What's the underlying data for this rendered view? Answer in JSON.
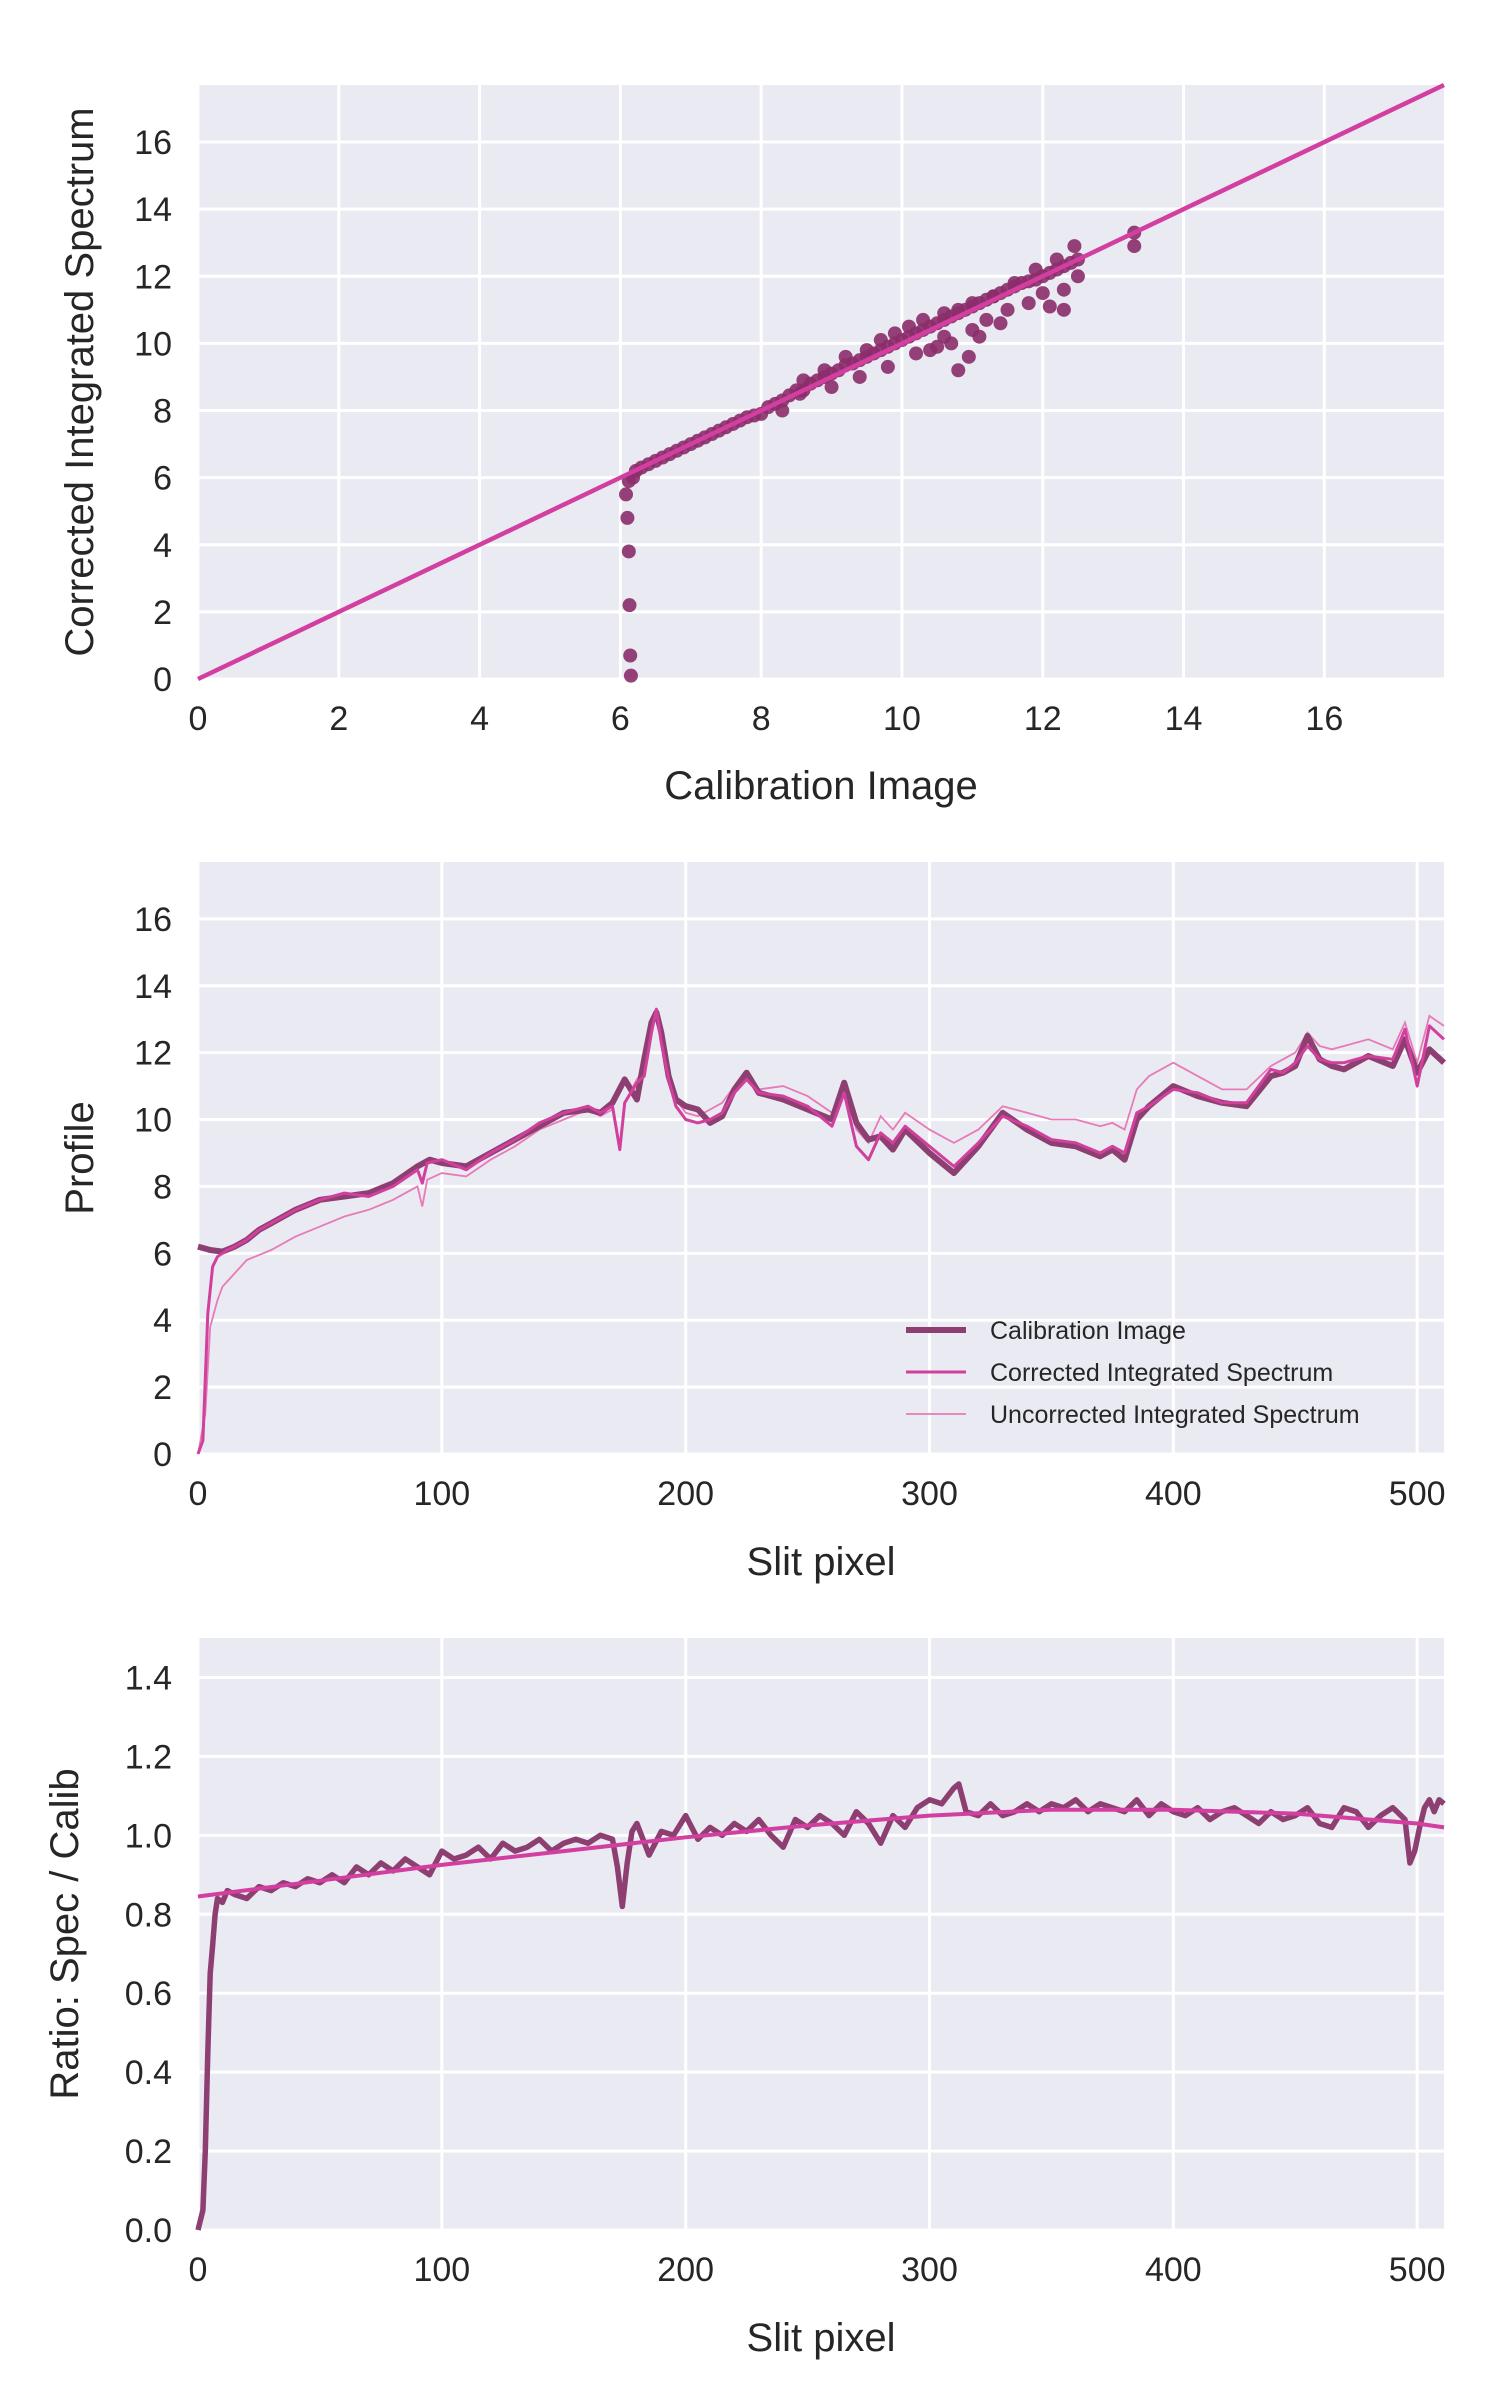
{
  "colors": {
    "panel_bg": "#EAEAF2",
    "grid": "#FFFFFF",
    "calibration": "#8E3F72",
    "scatter": "#8B2D6A",
    "corrected": "#D0409C",
    "uncorrected": "#E77AB8",
    "fit": "#D23FA0"
  },
  "chart_data": [
    {
      "type": "scatter",
      "xlabel": "Calibration Image",
      "ylabel": "Corrected Integrated Spectrum",
      "xlim": [
        0,
        17.7
      ],
      "ylim": [
        0,
        17.7
      ],
      "xticks": [
        0,
        2,
        4,
        6,
        8,
        10,
        12,
        14,
        16
      ],
      "yticks": [
        0,
        2,
        4,
        6,
        8,
        10,
        12,
        14,
        16
      ],
      "grid": true,
      "series": [
        {
          "kind": "line",
          "role": "identity",
          "x": [
            0,
            17.7
          ],
          "y": [
            0,
            17.7
          ]
        },
        {
          "kind": "points",
          "role": "pixels",
          "x": [
            6.15,
            6.14,
            6.13,
            6.12,
            6.1,
            6.08,
            6.12,
            6.18,
            6.22,
            6.3,
            6.4,
            6.5,
            6.6,
            6.7,
            6.8,
            6.9,
            7.0,
            7.1,
            7.2,
            7.3,
            7.4,
            7.5,
            7.6,
            7.7,
            7.8,
            7.9,
            8.0,
            8.1,
            8.2,
            8.3,
            8.4,
            8.5,
            8.55,
            8.6,
            8.7,
            8.8,
            8.9,
            9.0,
            9.1,
            9.2,
            9.3,
            9.4,
            9.5,
            9.6,
            9.7,
            9.8,
            9.9,
            10.0,
            10.1,
            10.2,
            10.3,
            10.4,
            10.5,
            10.6,
            10.7,
            10.8,
            10.9,
            11.0,
            11.1,
            11.2,
            11.3,
            11.4,
            11.5,
            11.6,
            11.7,
            11.8,
            11.9,
            12.0,
            12.1,
            12.2,
            12.3,
            12.4,
            12.5,
            8.6,
            8.9,
            9.2,
            9.5,
            9.7,
            9.9,
            10.1,
            10.3,
            10.6,
            10.8,
            11.0,
            11.3,
            11.6,
            11.9,
            12.2,
            12.45,
            10.4,
            10.7,
            11.0,
            11.5,
            12.0,
            12.5,
            9.4,
            9.8,
            10.2,
            10.6,
            11.2,
            11.8,
            12.3,
            13.3,
            13.3,
            10.8,
            10.95,
            10.5,
            11.4,
            12.1,
            12.3,
            11.1,
            9.0,
            8.3
          ],
          "y": [
            0.1,
            0.7,
            2.2,
            3.8,
            4.8,
            5.5,
            5.9,
            6.0,
            6.2,
            6.3,
            6.4,
            6.5,
            6.6,
            6.7,
            6.8,
            6.9,
            7.0,
            7.1,
            7.2,
            7.3,
            7.4,
            7.5,
            7.6,
            7.7,
            7.8,
            7.85,
            7.9,
            8.1,
            8.2,
            8.3,
            8.45,
            8.6,
            8.5,
            8.6,
            8.8,
            8.9,
            9.0,
            9.1,
            9.2,
            9.35,
            9.4,
            9.5,
            9.6,
            9.7,
            9.8,
            9.9,
            10.0,
            10.1,
            10.2,
            10.3,
            10.4,
            10.5,
            10.6,
            10.7,
            10.8,
            10.9,
            11.0,
            11.1,
            11.2,
            11.3,
            11.4,
            11.5,
            11.6,
            11.7,
            11.8,
            11.85,
            11.9,
            12.0,
            12.1,
            12.2,
            12.3,
            12.4,
            12.5,
            8.9,
            9.2,
            9.6,
            9.8,
            10.1,
            10.3,
            10.5,
            10.7,
            10.9,
            11.0,
            11.2,
            11.4,
            11.8,
            12.2,
            12.5,
            12.9,
            9.8,
            10.0,
            10.4,
            11.0,
            11.5,
            12.0,
            9.0,
            9.3,
            9.7,
            10.2,
            10.7,
            11.2,
            11.6,
            13.3,
            12.9,
            9.2,
            9.6,
            9.9,
            10.6,
            11.1,
            11.0,
            10.2,
            8.7,
            8.0
          ]
        }
      ]
    },
    {
      "type": "line",
      "xlabel": "Slit pixel",
      "ylabel": "Profile",
      "xlim": [
        0,
        511
      ],
      "ylim": [
        0,
        17.7
      ],
      "xticks": [
        0,
        100,
        200,
        300,
        400,
        500
      ],
      "yticks": [
        0,
        2,
        4,
        6,
        8,
        10,
        12,
        14,
        16
      ],
      "grid": true,
      "legend": "lower-right",
      "series": [
        {
          "name": "Calibration Image",
          "x": [
            0,
            5,
            10,
            15,
            20,
            25,
            30,
            40,
            50,
            60,
            70,
            80,
            90,
            95,
            100,
            110,
            120,
            130,
            140,
            150,
            160,
            165,
            170,
            175,
            180,
            183,
            186,
            188,
            190,
            193,
            196,
            200,
            205,
            210,
            215,
            220,
            225,
            230,
            240,
            250,
            260,
            265,
            270,
            275,
            280,
            285,
            290,
            300,
            310,
            320,
            330,
            340,
            350,
            360,
            370,
            375,
            380,
            385,
            390,
            400,
            410,
            420,
            430,
            440,
            445,
            450,
            455,
            460,
            465,
            470,
            480,
            490,
            495,
            500,
            505,
            511
          ],
          "y": [
            6.2,
            6.1,
            6.05,
            6.2,
            6.4,
            6.7,
            6.9,
            7.3,
            7.6,
            7.7,
            7.8,
            8.1,
            8.6,
            8.8,
            8.7,
            8.6,
            9.0,
            9.4,
            9.8,
            10.2,
            10.3,
            10.2,
            10.5,
            11.2,
            10.6,
            11.8,
            12.9,
            13.2,
            12.6,
            11.3,
            10.6,
            10.4,
            10.3,
            9.9,
            10.1,
            10.9,
            11.4,
            10.8,
            10.6,
            10.3,
            10.0,
            11.1,
            9.9,
            9.4,
            9.5,
            9.1,
            9.7,
            9.0,
            8.4,
            9.2,
            10.2,
            9.7,
            9.3,
            9.2,
            8.9,
            9.1,
            8.8,
            10.0,
            10.4,
            11.0,
            10.7,
            10.5,
            10.4,
            11.3,
            11.4,
            11.6,
            12.5,
            11.8,
            11.6,
            11.5,
            11.9,
            11.6,
            12.4,
            11.4,
            12.1,
            11.7
          ]
        },
        {
          "name": "Corrected Integrated Spectrum",
          "x": [
            0,
            2,
            4,
            6,
            8,
            10,
            12,
            15,
            20,
            25,
            30,
            40,
            50,
            60,
            70,
            80,
            90,
            92,
            94,
            100,
            110,
            120,
            130,
            140,
            150,
            160,
            165,
            170,
            173,
            175,
            180,
            183,
            186,
            188,
            190,
            193,
            196,
            200,
            205,
            210,
            215,
            220,
            225,
            230,
            240,
            250,
            260,
            265,
            270,
            275,
            280,
            285,
            290,
            300,
            310,
            320,
            330,
            340,
            350,
            360,
            370,
            375,
            380,
            385,
            390,
            400,
            410,
            420,
            430,
            440,
            445,
            450,
            455,
            460,
            465,
            470,
            480,
            490,
            495,
            500,
            505,
            511
          ],
          "y": [
            0,
            0.4,
            4.2,
            5.6,
            5.9,
            6.0,
            6.1,
            6.2,
            6.4,
            6.7,
            6.9,
            7.3,
            7.6,
            7.8,
            7.7,
            8.0,
            8.5,
            8.1,
            8.7,
            8.8,
            8.5,
            9.0,
            9.4,
            9.9,
            10.2,
            10.4,
            10.2,
            10.4,
            9.1,
            10.5,
            11.1,
            11.3,
            12.6,
            13.3,
            12.3,
            11.2,
            10.4,
            10.0,
            9.9,
            10.0,
            10.2,
            10.8,
            11.2,
            10.8,
            10.7,
            10.4,
            9.8,
            10.8,
            9.2,
            8.8,
            9.6,
            9.3,
            9.8,
            9.2,
            8.6,
            9.3,
            10.1,
            9.8,
            9.4,
            9.3,
            9.0,
            9.2,
            9.0,
            10.2,
            10.4,
            10.9,
            10.8,
            10.5,
            10.5,
            11.5,
            11.4,
            11.7,
            12.2,
            11.8,
            11.7,
            11.7,
            11.9,
            11.8,
            12.7,
            11.0,
            12.8,
            12.4
          ]
        },
        {
          "name": "Uncorrected Integrated Spectrum",
          "x": [
            0,
            3,
            5,
            8,
            10,
            15,
            20,
            30,
            40,
            50,
            60,
            70,
            80,
            90,
            92,
            94,
            100,
            110,
            120,
            130,
            140,
            150,
            160,
            165,
            170,
            173,
            175,
            180,
            183,
            186,
            188,
            190,
            193,
            196,
            200,
            205,
            210,
            215,
            220,
            225,
            230,
            240,
            250,
            260,
            265,
            270,
            275,
            280,
            285,
            290,
            300,
            310,
            320,
            330,
            340,
            350,
            360,
            370,
            375,
            380,
            385,
            390,
            400,
            410,
            420,
            430,
            440,
            445,
            450,
            455,
            460,
            465,
            470,
            480,
            490,
            495,
            500,
            505,
            511
          ],
          "y": [
            0,
            1.2,
            3.8,
            4.6,
            5.0,
            5.4,
            5.8,
            6.1,
            6.5,
            6.8,
            7.1,
            7.3,
            7.6,
            8.0,
            7.4,
            8.2,
            8.4,
            8.3,
            8.8,
            9.2,
            9.7,
            10.0,
            10.3,
            10.1,
            10.3,
            9.2,
            10.5,
            11.2,
            11.5,
            12.7,
            13.1,
            12.3,
            11.3,
            10.6,
            10.2,
            10.1,
            10.3,
            10.5,
            11.0,
            11.3,
            10.9,
            11.0,
            10.7,
            10.2,
            11.0,
            9.7,
            9.3,
            10.1,
            9.7,
            10.2,
            9.7,
            9.3,
            9.7,
            10.4,
            10.2,
            10.0,
            10.0,
            9.8,
            9.9,
            9.7,
            10.9,
            11.3,
            11.7,
            11.3,
            10.9,
            10.9,
            11.6,
            11.8,
            12.0,
            12.6,
            12.2,
            12.1,
            12.2,
            12.4,
            12.1,
            12.9,
            11.7,
            13.1,
            12.8
          ]
        }
      ]
    },
    {
      "type": "line",
      "xlabel": "Slit pixel",
      "ylabel": "Ratio: Spec / Calib",
      "xlim": [
        0,
        511
      ],
      "ylim": [
        0,
        1.5
      ],
      "xticks": [
        0,
        100,
        200,
        300,
        400,
        500
      ],
      "yticks": [
        0.0,
        0.2,
        0.4,
        0.6,
        0.8,
        1.0,
        1.2,
        1.4
      ],
      "grid": true,
      "series": [
        {
          "role": "ratio",
          "x": [
            0,
            2,
            3,
            4,
            5,
            6,
            7,
            8,
            10,
            12,
            15,
            20,
            25,
            30,
            35,
            40,
            45,
            50,
            55,
            60,
            65,
            70,
            75,
            80,
            85,
            90,
            95,
            100,
            105,
            110,
            115,
            120,
            125,
            130,
            135,
            140,
            145,
            150,
            155,
            160,
            165,
            170,
            172,
            174,
            176,
            178,
            180,
            185,
            190,
            195,
            200,
            205,
            210,
            215,
            220,
            225,
            230,
            235,
            240,
            245,
            250,
            255,
            260,
            265,
            270,
            275,
            280,
            285,
            290,
            295,
            300,
            305,
            310,
            312,
            315,
            320,
            325,
            330,
            335,
            340,
            345,
            350,
            355,
            360,
            365,
            370,
            375,
            380,
            385,
            390,
            395,
            400,
            405,
            410,
            415,
            420,
            425,
            430,
            435,
            440,
            445,
            450,
            455,
            460,
            465,
            470,
            475,
            480,
            485,
            490,
            495,
            497,
            499,
            501,
            503,
            505,
            507,
            509,
            511
          ],
          "y": [
            0.0,
            0.05,
            0.2,
            0.45,
            0.65,
            0.72,
            0.8,
            0.84,
            0.83,
            0.86,
            0.85,
            0.84,
            0.87,
            0.86,
            0.88,
            0.87,
            0.89,
            0.88,
            0.9,
            0.88,
            0.92,
            0.9,
            0.93,
            0.91,
            0.94,
            0.92,
            0.9,
            0.96,
            0.94,
            0.95,
            0.97,
            0.94,
            0.98,
            0.96,
            0.97,
            0.99,
            0.96,
            0.98,
            0.99,
            0.98,
            1.0,
            0.99,
            0.92,
            0.82,
            0.93,
            1.01,
            1.03,
            0.95,
            1.01,
            1.0,
            1.05,
            0.99,
            1.02,
            1.0,
            1.03,
            1.01,
            1.04,
            1.0,
            0.97,
            1.04,
            1.02,
            1.05,
            1.03,
            1.0,
            1.06,
            1.03,
            0.98,
            1.05,
            1.02,
            1.07,
            1.09,
            1.08,
            1.12,
            1.13,
            1.06,
            1.05,
            1.08,
            1.05,
            1.06,
            1.08,
            1.06,
            1.08,
            1.07,
            1.09,
            1.06,
            1.08,
            1.07,
            1.06,
            1.09,
            1.05,
            1.08,
            1.06,
            1.05,
            1.07,
            1.04,
            1.06,
            1.07,
            1.05,
            1.03,
            1.06,
            1.04,
            1.05,
            1.07,
            1.03,
            1.02,
            1.07,
            1.06,
            1.02,
            1.05,
            1.07,
            1.04,
            0.93,
            0.96,
            1.02,
            1.07,
            1.09,
            1.06,
            1.09,
            1.08
          ]
        },
        {
          "role": "fit",
          "x": [
            0,
            50,
            100,
            150,
            200,
            250,
            300,
            350,
            400,
            450,
            500,
            511
          ],
          "y": [
            0.845,
            0.885,
            0.925,
            0.96,
            0.995,
            1.025,
            1.05,
            1.065,
            1.065,
            1.055,
            1.03,
            1.02
          ]
        }
      ]
    }
  ]
}
